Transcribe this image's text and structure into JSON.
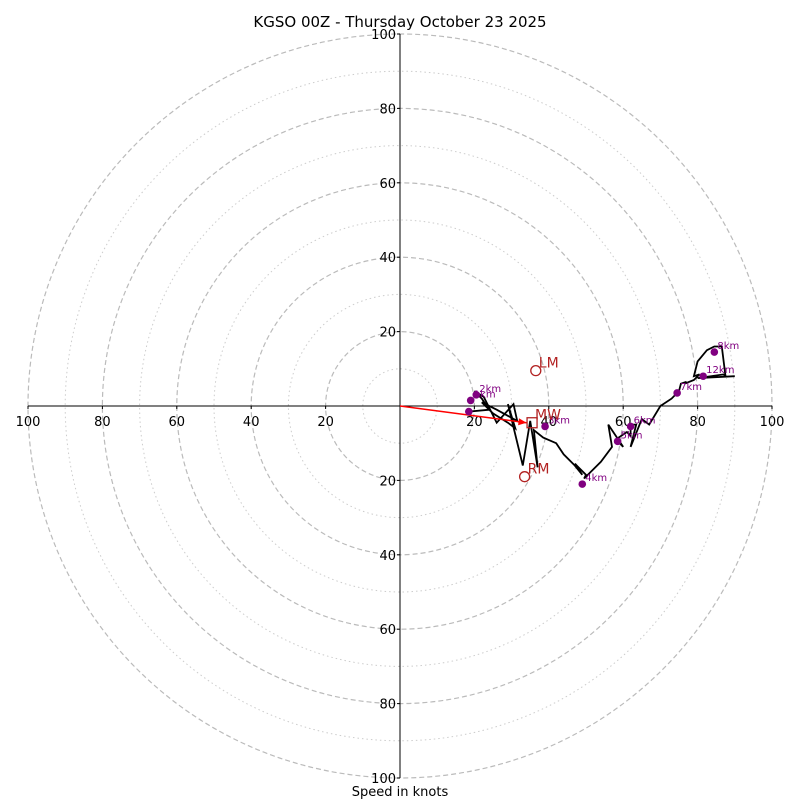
{
  "chart_data": {
    "type": "line",
    "subtype": "hodograph",
    "title": "KGSO 00Z - Thursday October 23 2025",
    "xlabel": "Speed in knots",
    "ylabel": "",
    "range_knots": [
      -100,
      100
    ],
    "major_rings": [
      20,
      40,
      60,
      80,
      100
    ],
    "minor_rings": [
      10,
      30,
      50,
      70,
      90
    ],
    "tick_labels": {
      "top": [
        "20",
        "40",
        "60",
        "80",
        "100"
      ],
      "bottom": [
        "20",
        "40",
        "60",
        "80",
        "100"
      ],
      "left": [
        "20",
        "40",
        "60",
        "80",
        "100"
      ],
      "right": [
        "20",
        "40",
        "60",
        "80",
        "100"
      ]
    },
    "grid": true,
    "colors": {
      "trace": "#000000",
      "height_markers": "#800080",
      "motion": "#b22222",
      "shear_vector": "#ff0000",
      "grid": "#bbbbbb"
    },
    "hodograph_trace": [
      {
        "u": 18.5,
        "v": -1.5
      },
      {
        "u": 24.0,
        "v": -1.0
      },
      {
        "u": 22.0,
        "v": 2.0
      },
      {
        "u": 20.0,
        "v": 4.0
      },
      {
        "u": 22.5,
        "v": 2.5
      },
      {
        "u": 26.0,
        "v": -4.5
      },
      {
        "u": 30.5,
        "v": 0.5
      },
      {
        "u": 31.5,
        "v": -4.0
      },
      {
        "u": 26.0,
        "v": -1.0
      },
      {
        "u": 22.0,
        "v": 1.0
      },
      {
        "u": 25.0,
        "v": -2.0
      },
      {
        "u": 29.0,
        "v": -4.5
      },
      {
        "u": 31.0,
        "v": -6.0
      },
      {
        "u": 29.0,
        "v": 0.5
      },
      {
        "u": 33.0,
        "v": -16.0
      },
      {
        "u": 35.0,
        "v": -4.0
      },
      {
        "u": 37.0,
        "v": -16.5
      },
      {
        "u": 36.0,
        "v": -6.5
      },
      {
        "u": 38.5,
        "v": -8.5
      },
      {
        "u": 42.0,
        "v": -10.0
      },
      {
        "u": 44.0,
        "v": -13.0
      },
      {
        "u": 47.0,
        "v": -16.0
      },
      {
        "u": 49.0,
        "v": -18.5
      },
      {
        "u": 47.0,
        "v": -15.5
      },
      {
        "u": 50.0,
        "v": -18.5
      },
      {
        "u": 49.5,
        "v": -19.5
      },
      {
        "u": 52.0,
        "v": -17.0
      },
      {
        "u": 54.0,
        "v": -15.0
      },
      {
        "u": 57.0,
        "v": -11.0
      },
      {
        "u": 56.0,
        "v": -5.0
      },
      {
        "u": 60.0,
        "v": -11.0
      },
      {
        "u": 58.0,
        "v": -9.0
      },
      {
        "u": 61.0,
        "v": -7.0
      },
      {
        "u": 62.0,
        "v": -8.0
      },
      {
        "u": 62.0,
        "v": -5.0
      },
      {
        "u": 63.5,
        "v": -5.0
      },
      {
        "u": 62.0,
        "v": -11.0
      },
      {
        "u": 64.0,
        "v": -6.0
      },
      {
        "u": 65.0,
        "v": -3.5
      },
      {
        "u": 67.0,
        "v": -5.0
      },
      {
        "u": 70.0,
        "v": 0.0
      },
      {
        "u": 73.0,
        "v": 2.0
      },
      {
        "u": 75.0,
        "v": 4.0
      },
      {
        "u": 75.5,
        "v": 6.0
      },
      {
        "u": 77.0,
        "v": 6.5
      },
      {
        "u": 76.5,
        "v": 6.0
      },
      {
        "u": 79.0,
        "v": 7.0
      },
      {
        "u": 80.5,
        "v": 8.5
      },
      {
        "u": 79.0,
        "v": 8.0
      },
      {
        "u": 80.0,
        "v": 12.0
      },
      {
        "u": 82.5,
        "v": 15.0
      },
      {
        "u": 84.5,
        "v": 16.0
      },
      {
        "u": 86.5,
        "v": 16.0
      },
      {
        "u": 87.5,
        "v": 8.0
      },
      {
        "u": 87.0,
        "v": 8.5
      },
      {
        "u": 80.0,
        "v": 7.5
      },
      {
        "u": 90.0,
        "v": 8.0
      }
    ],
    "height_markers": [
      {
        "label": "2km",
        "u": 20.5,
        "v": 3.0
      },
      {
        "label": "1km",
        "u": 19.0,
        "v": 1.5
      },
      {
        "label": "",
        "u": 18.5,
        "v": -1.5
      },
      {
        "label": "3km",
        "u": 39.0,
        "v": -5.5
      },
      {
        "label": "4km",
        "u": 49.0,
        "v": -21.0
      },
      {
        "label": "5km",
        "u": 58.5,
        "v": -9.5
      },
      {
        "label": "6km",
        "u": 62.0,
        "v": -5.5
      },
      {
        "label": "7km",
        "u": 74.5,
        "v": 3.5
      },
      {
        "label": "12km",
        "u": 81.5,
        "v": 8.0
      },
      {
        "label": "8km",
        "u": 84.5,
        "v": 14.5
      }
    ],
    "storm_motion": [
      {
        "label": "LM",
        "marker": "circle",
        "u": 36.5,
        "v": 9.5
      },
      {
        "label": "RM",
        "marker": "circle",
        "u": 33.5,
        "v": -19.0
      },
      {
        "label": "MW",
        "marker": "square",
        "u": 35.5,
        "v": -4.5
      }
    ],
    "shear_vector": {
      "from": {
        "u": 0,
        "v": 0
      },
      "to": {
        "u": 34.0,
        "v": -4.5
      }
    }
  }
}
